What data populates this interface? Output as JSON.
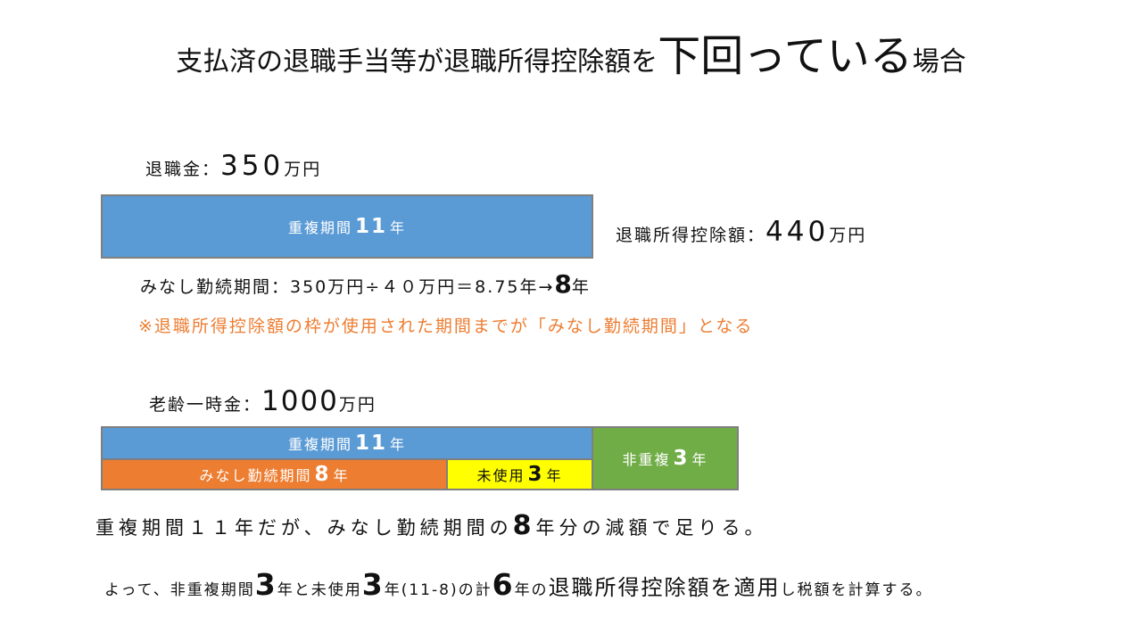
{
  "title": {
    "part1": "支払済の退職手当等が退職所得控除額を",
    "emph": "下回っている",
    "part2": "場合"
  },
  "retirement": {
    "label": "退職金：",
    "amount": "350",
    "unit": "万円"
  },
  "deduction": {
    "label": "退職所得控除額：",
    "amount": "440",
    "unit": "万円"
  },
  "bar1": {
    "prefix": "重複期間",
    "years": "11",
    "suffix": "年"
  },
  "deemed": {
    "text": "みなし勤続期間：350万円÷４０万円＝8.75年→",
    "years": "8",
    "suffix": "年"
  },
  "note": "※退職所得控除額の枠が使用された期間までが「みなし勤続期間」となる",
  "pension": {
    "label": "老齢一時金：",
    "amount": "1000",
    "unit": "万円"
  },
  "bar2": {
    "overlap": {
      "prefix": "重複期間",
      "years": "11",
      "suffix": "年"
    },
    "deemed": {
      "prefix": "みなし勤続期間",
      "years": "8",
      "suffix": "年"
    },
    "unused": {
      "prefix": "未使用",
      "years": "3",
      "suffix": "年"
    },
    "non_overlap": {
      "prefix": "非重複",
      "years": "3",
      "suffix": "年"
    }
  },
  "summary1": {
    "a": "重複期間１１年だが、みなし勤続期間の",
    "years": "8",
    "b": "年分の減額で足りる。"
  },
  "summary2": {
    "a": "よって、非重複期間",
    "y1": "3",
    "b": "年と未使用",
    "y2": "3",
    "c": "年(11-8)の計",
    "y3": "6",
    "d": "年の",
    "e": "退職所得控除額を適用",
    "f": "し税額を計算する。"
  },
  "colors": {
    "blue": "#5b9bd5",
    "orange": "#ed7d31",
    "yellow": "#ffff00",
    "green": "#70ad47",
    "border": "#7f7f7f"
  }
}
